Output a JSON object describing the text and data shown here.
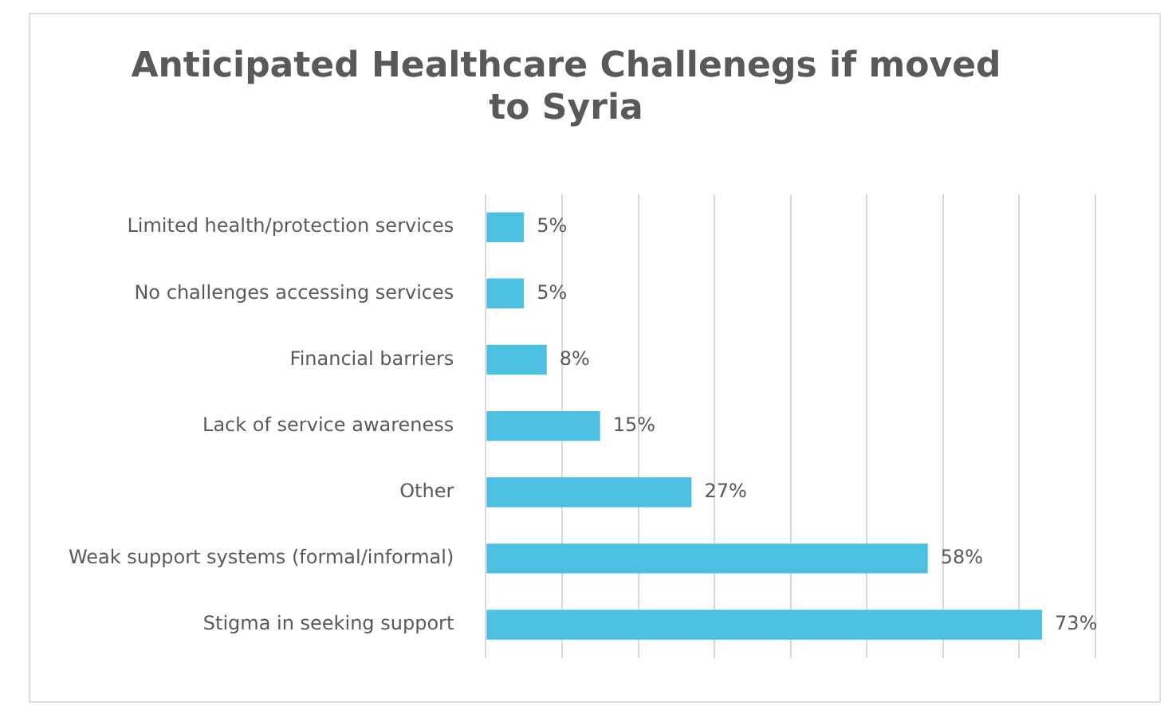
{
  "chart_data": {
    "type": "bar",
    "orientation": "horizontal",
    "title": "Anticipated Healthcare Challenegs if moved to Syria",
    "categories": [
      "Limited health/protection services",
      "No challenges accessing services",
      "Financial barriers",
      "Lack of service awareness",
      "Other",
      "Weak support systems (formal/informal)",
      "Stigma in seeking support"
    ],
    "values": [
      5,
      5,
      8,
      15,
      27,
      58,
      73
    ],
    "value_labels": [
      "5%",
      "5%",
      "8%",
      "15%",
      "27%",
      "58%",
      "73%"
    ],
    "color": "#4bc0e0",
    "xlim": [
      0,
      80
    ],
    "xticks": [
      {
        "value": 0,
        "label": null
      },
      {
        "value": 10,
        "label": null
      },
      {
        "value": 20,
        "label": null
      },
      {
        "value": 30,
        "label": null
      },
      {
        "value": 40,
        "label": null
      },
      {
        "value": 50,
        "label": null
      },
      {
        "value": 60,
        "label": null
      },
      {
        "value": 70,
        "label": null
      },
      {
        "value": 80,
        "label": null
      }
    ],
    "grid": "x",
    "tick_labels": "y",
    "legend": false
  }
}
